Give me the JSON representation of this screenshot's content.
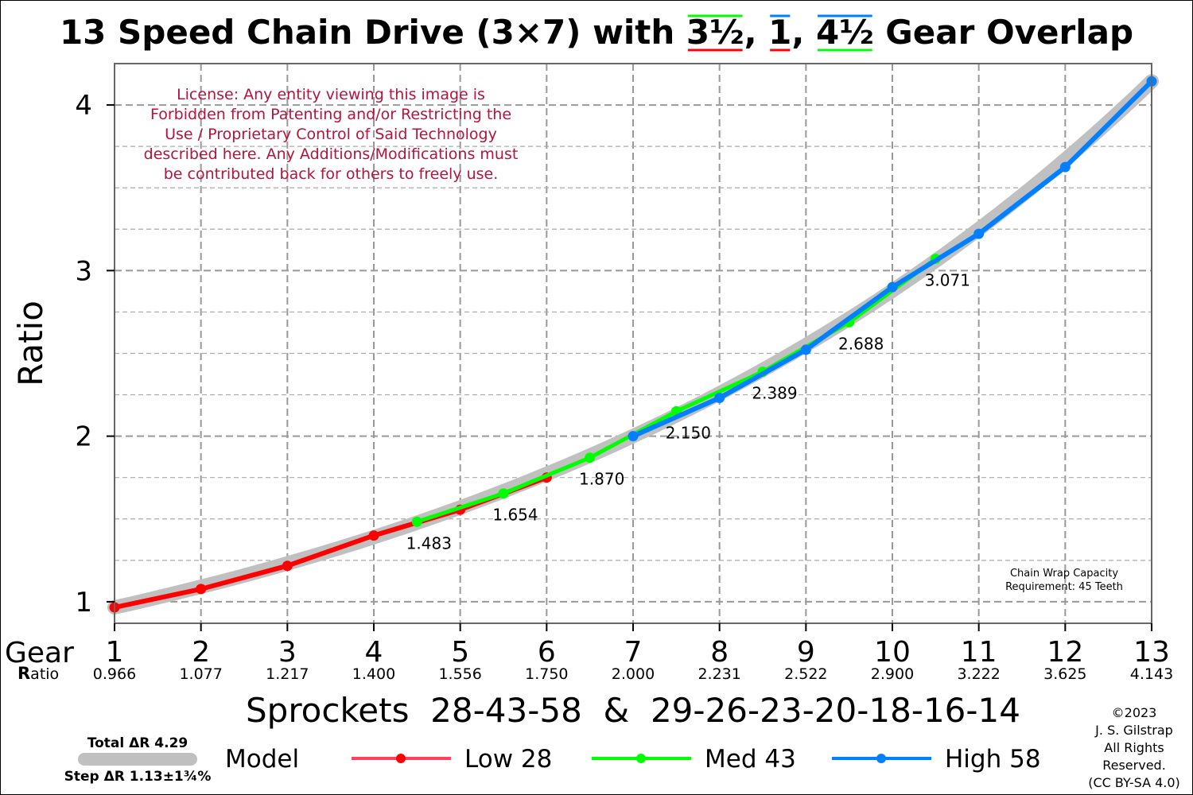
{
  "title": {
    "prefix": "13 Speed Chain Drive (3×7) with ",
    "overlap_a": "3½",
    "sep1": ", ",
    "overlap_b": "1",
    "sep2": ", ",
    "overlap_c": "4½",
    "suffix": " Gear Overlap"
  },
  "colors": {
    "low": "#ff0000",
    "med": "#00ff00",
    "high": "#0080ff",
    "model": "#c0c0c0",
    "license": "#b3143c",
    "low_legend": "#ff4060"
  },
  "license_lines": [
    "License: Any entity viewing this image is",
    "Forbidden from Patenting and/or Restricting the",
    "Use / Proprietary Control of Said Technology",
    "described here. Any Additions/Modifications must",
    "be contributed back for others to freely use."
  ],
  "chain_wrap": [
    "Chain Wrap Capacity",
    "Requirement: 45 Teeth"
  ],
  "labels": {
    "gear": "Gear",
    "ratio_big": "R",
    "ratio_rest": "atio",
    "xlabel": "Sprockets  28-43-58  &  29-26-23-20-18-16-14",
    "ylabel": "Ratio"
  },
  "legend": {
    "total": "Total ΔR 4.29",
    "step": "Step ΔR 1.13±1¾%",
    "model": "Model",
    "low": "Low 28",
    "med": "Med 43",
    "high": "High 58"
  },
  "copyright": [
    "©2023",
    "J. S. Gilstrap",
    "All Rights",
    "Reserved.",
    "(CC BY-SA 4.0)"
  ],
  "chart_data": {
    "type": "line",
    "xlim": [
      1,
      13
    ],
    "ylim": [
      0.87,
      4.25
    ],
    "yticks": [
      "1",
      "2",
      "3",
      "4"
    ],
    "grid": true,
    "gears": [
      "1",
      "2",
      "3",
      "4",
      "5",
      "6",
      "7",
      "8",
      "9",
      "10",
      "11",
      "12",
      "13"
    ],
    "gear_ratios": [
      "0.966",
      "1.077",
      "1.217",
      "1.400",
      "1.556",
      "1.750",
      "2.000",
      "2.231",
      "2.522",
      "2.900",
      "3.222",
      "3.625",
      "4.143"
    ],
    "series": [
      {
        "name": "Low 28",
        "x": [
          1,
          2,
          3,
          4,
          5,
          6
        ],
        "values": [
          0.966,
          1.077,
          1.217,
          1.4,
          1.556,
          1.75
        ]
      },
      {
        "name": "Med 43",
        "x": [
          4.5,
          5.5,
          6.5,
          7.5,
          8.5,
          9.5,
          10.5
        ],
        "values": [
          1.483,
          1.654,
          1.87,
          2.15,
          2.389,
          2.688,
          3.071
        ]
      },
      {
        "name": "High 58",
        "x": [
          7,
          8,
          9,
          10,
          11,
          12,
          13
        ],
        "values": [
          2.0,
          2.231,
          2.522,
          2.9,
          3.222,
          3.625,
          4.143
        ]
      }
    ],
    "model": {
      "name": "Model",
      "x": [
        1,
        13
      ],
      "start": 0.966,
      "end": 4.143
    },
    "annotations": [
      {
        "x": 4.5,
        "y": 1.483,
        "text": "1.483"
      },
      {
        "x": 5.5,
        "y": 1.654,
        "text": "1.654"
      },
      {
        "x": 6.5,
        "y": 1.87,
        "text": "1.870"
      },
      {
        "x": 7.5,
        "y": 2.15,
        "text": "2.150"
      },
      {
        "x": 8.5,
        "y": 2.389,
        "text": "2.389"
      },
      {
        "x": 9.5,
        "y": 2.688,
        "text": "2.688"
      },
      {
        "x": 10.5,
        "y": 3.071,
        "text": "3.071"
      }
    ]
  }
}
